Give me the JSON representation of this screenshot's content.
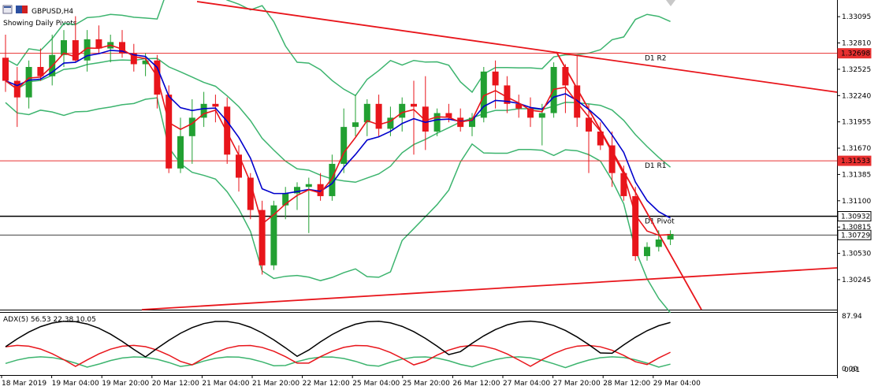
{
  "header": {
    "symbol_label": "GBPUSD,H4",
    "pivots_label": "Showing Daily Pivots"
  },
  "indicator": {
    "label": "ADX(5) 56.53 22.38 10.05",
    "axis_top": "87.94",
    "axis_bottom": "0.00",
    "axis_bottom_overlap": "0.01"
  },
  "colors": {
    "bull": "#22a032",
    "bear": "#e8151b",
    "ma_fast": "#e8151b",
    "ma_slow": "#0000cc",
    "bands": "#3cb46e",
    "trend": "#e8151b",
    "pivot_line": "#000000",
    "pivot_res": "#e83030"
  },
  "chart_data": {
    "type": "candlestick",
    "symbol": "GBPUSD",
    "timeframe": "H4",
    "y_ticks": [
      "1.33095",
      "1.32810",
      "1.32525",
      "1.32240",
      "1.31955",
      "1.31670",
      "1.31385",
      "1.31100",
      "1.30815",
      "1.30530",
      "1.30245"
    ],
    "x_ticks": [
      "18 Mar 2019",
      "19 Mar 04:00",
      "19 Mar 20:00",
      "20 Mar 12:00",
      "21 Mar 04:00",
      "21 Mar 20:00",
      "22 Mar 12:00",
      "25 Mar 04:00",
      "25 Mar 20:00",
      "26 Mar 12:00",
      "27 Mar 04:00",
      "27 Mar 20:00",
      "28 Mar 12:00",
      "29 Mar 04:00"
    ],
    "price_range": [
      1.2992,
      1.3325
    ],
    "pivots": [
      {
        "name": "D1 R2",
        "value": 1.32698,
        "label": "1.32698"
      },
      {
        "name": "D1 R1",
        "value": 1.31533,
        "label": "1.31533"
      },
      {
        "name": "D1 Pivot",
        "value": 1.30932,
        "label": "1.30932"
      }
    ],
    "current_price": {
      "value": 1.30729,
      "label": "1.30729"
    },
    "candles": [
      [
        1.3265,
        1.329,
        1.3228,
        1.324
      ],
      [
        1.324,
        1.3255,
        1.319,
        1.3222
      ],
      [
        1.3222,
        1.3262,
        1.321,
        1.3255
      ],
      [
        1.3255,
        1.3275,
        1.324,
        1.3245
      ],
      [
        1.3245,
        1.329,
        1.3235,
        1.3268
      ],
      [
        1.3268,
        1.3295,
        1.3255,
        1.3284
      ],
      [
        1.3284,
        1.331,
        1.326,
        1.3262
      ],
      [
        1.3262,
        1.3295,
        1.325,
        1.3285
      ],
      [
        1.3285,
        1.33,
        1.327,
        1.3275
      ],
      [
        1.3275,
        1.329,
        1.326,
        1.3282
      ],
      [
        1.3282,
        1.3295,
        1.3265,
        1.327
      ],
      [
        1.327,
        1.328,
        1.325,
        1.3258
      ],
      [
        1.3258,
        1.327,
        1.3245,
        1.3262
      ],
      [
        1.3262,
        1.3268,
        1.321,
        1.3225
      ],
      [
        1.3225,
        1.3235,
        1.314,
        1.3145
      ],
      [
        1.3145,
        1.32,
        1.314,
        1.318
      ],
      [
        1.318,
        1.322,
        1.315,
        1.32
      ],
      [
        1.32,
        1.3228,
        1.319,
        1.3215
      ],
      [
        1.3215,
        1.3225,
        1.3195,
        1.3212
      ],
      [
        1.3212,
        1.3222,
        1.315,
        1.316
      ],
      [
        1.316,
        1.317,
        1.312,
        1.3135
      ],
      [
        1.3135,
        1.314,
        1.309,
        1.31
      ],
      [
        1.31,
        1.311,
        1.303,
        1.304
      ],
      [
        1.304,
        1.311,
        1.3035,
        1.3105
      ],
      [
        1.3105,
        1.3125,
        1.309,
        1.3118
      ],
      [
        1.3118,
        1.313,
        1.31,
        1.3125
      ],
      [
        1.3125,
        1.3135,
        1.3075,
        1.3128
      ],
      [
        1.3128,
        1.314,
        1.311,
        1.3115
      ],
      [
        1.3115,
        1.316,
        1.311,
        1.315
      ],
      [
        1.315,
        1.321,
        1.314,
        1.319
      ],
      [
        1.319,
        1.3225,
        1.318,
        1.3195
      ],
      [
        1.3195,
        1.322,
        1.318,
        1.3215
      ],
      [
        1.3215,
        1.3225,
        1.318,
        1.3188
      ],
      [
        1.3188,
        1.3212,
        1.318,
        1.32
      ],
      [
        1.32,
        1.3222,
        1.3185,
        1.3215
      ],
      [
        1.3215,
        1.324,
        1.316,
        1.3212
      ],
      [
        1.3212,
        1.3245,
        1.3165,
        1.3185
      ],
      [
        1.3185,
        1.321,
        1.318,
        1.3205
      ],
      [
        1.3205,
        1.3215,
        1.3195,
        1.32
      ],
      [
        1.32,
        1.321,
        1.3185,
        1.319
      ],
      [
        1.319,
        1.3205,
        1.318,
        1.32
      ],
      [
        1.32,
        1.3255,
        1.3195,
        1.325
      ],
      [
        1.325,
        1.3262,
        1.321,
        1.3235
      ],
      [
        1.3235,
        1.3245,
        1.3205,
        1.3215
      ],
      [
        1.3215,
        1.3225,
        1.32,
        1.321
      ],
      [
        1.321,
        1.3222,
        1.319,
        1.32
      ],
      [
        1.32,
        1.3215,
        1.317,
        1.3205
      ],
      [
        1.3205,
        1.326,
        1.32,
        1.3255
      ],
      [
        1.3255,
        1.3258,
        1.3205,
        1.3235
      ],
      [
        1.3235,
        1.3268,
        1.319,
        1.32
      ],
      [
        1.32,
        1.3215,
        1.314,
        1.3185
      ],
      [
        1.3185,
        1.3195,
        1.3165,
        1.317
      ],
      [
        1.317,
        1.3185,
        1.3125,
        1.314
      ],
      [
        1.314,
        1.3148,
        1.311,
        1.3115
      ],
      [
        1.3115,
        1.3125,
        1.3045,
        1.305
      ],
      [
        1.305,
        1.3065,
        1.3045,
        1.306
      ],
      [
        1.306,
        1.3078,
        1.3055,
        1.3068
      ],
      [
        1.3068,
        1.3078,
        1.3062,
        1.3074
      ]
    ]
  }
}
